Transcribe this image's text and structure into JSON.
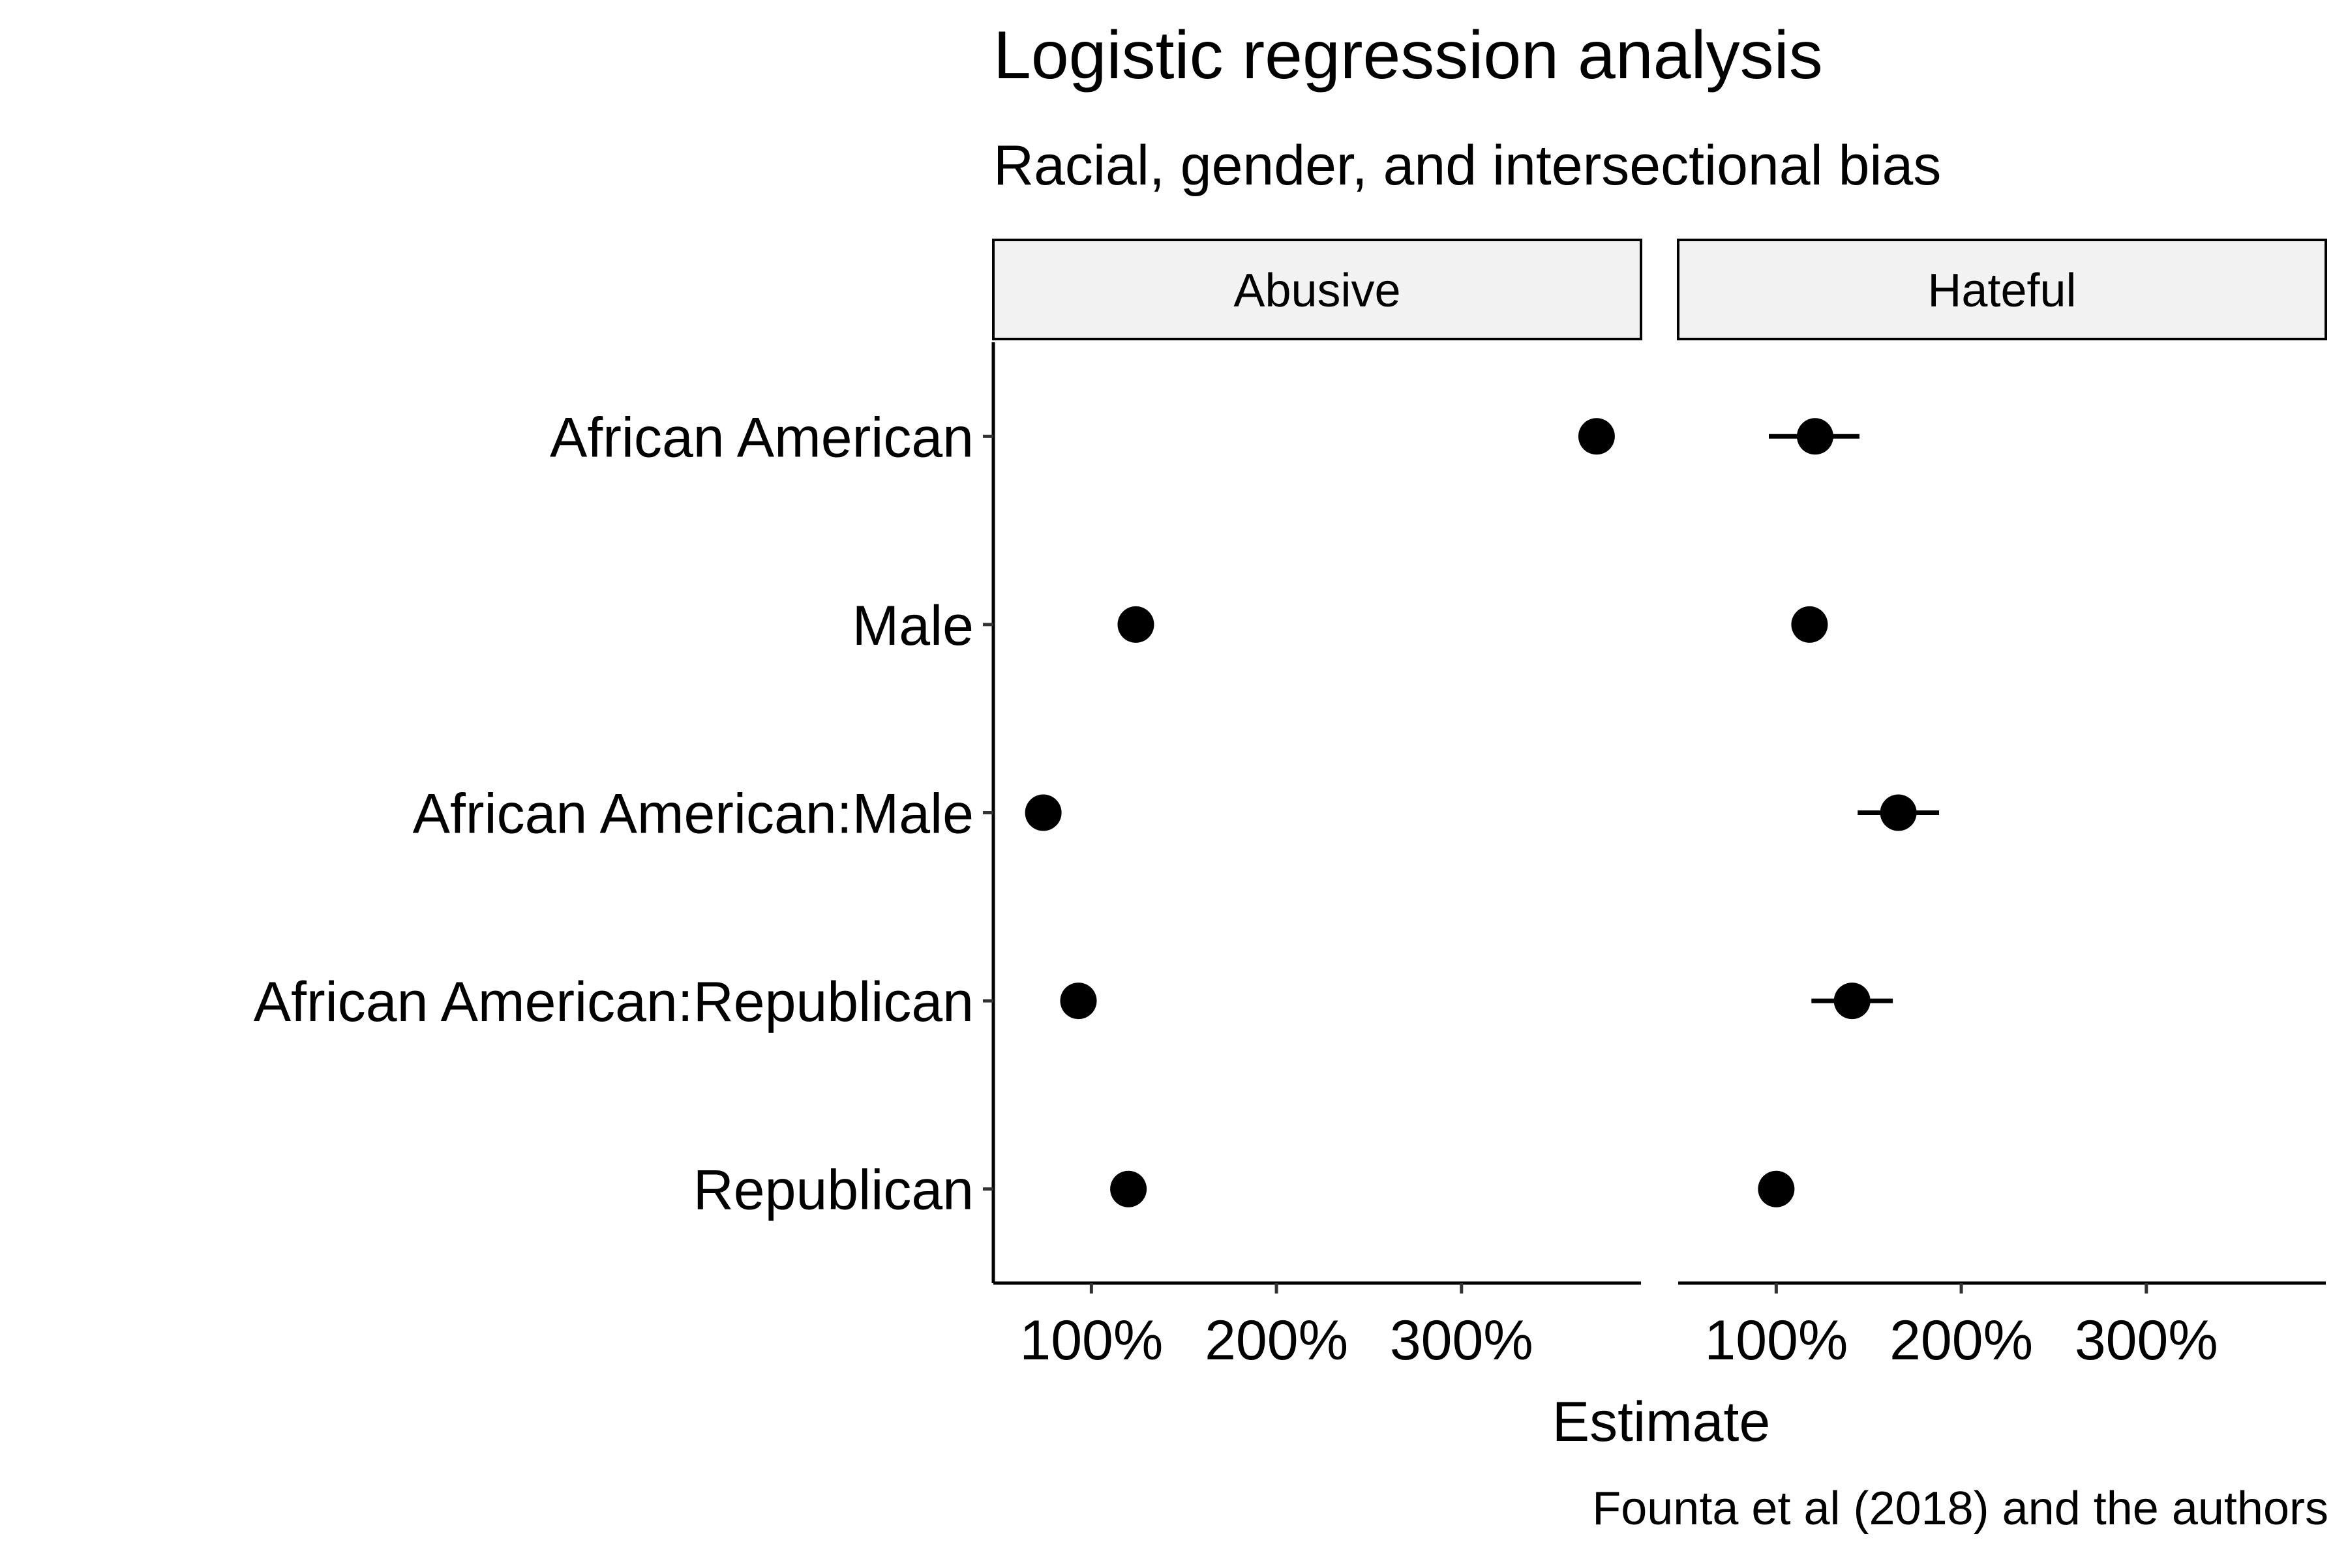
{
  "chart_data": {
    "type": "scatter",
    "subtype": "dot-and-whisker, faceted",
    "title": "Logistic regression analysis",
    "subtitle": "Racial, gender, and intersectional bias",
    "xlabel": "Estimate",
    "ylabel": "",
    "caption": "Founta et al (2018) and the authors",
    "x_unit": "%",
    "xlim": [
      47,
      397
    ],
    "x_ticks": [
      100,
      200,
      300
    ],
    "x_tick_labels": [
      "100%",
      "200%",
      "300%"
    ],
    "grid": false,
    "legend": "none",
    "categories": [
      "African American",
      "Male",
      "African American:Male",
      "African American:Republican",
      "Republican"
    ],
    "panels": [
      {
        "name": "Abusive",
        "points": [
          {
            "term": "African American",
            "estimate": 373,
            "low": 365,
            "high": 381
          },
          {
            "term": "Male",
            "estimate": 124,
            "low": 121,
            "high": 127
          },
          {
            "term": "African American:Male",
            "estimate": 74,
            "low": 66,
            "high": 82
          },
          {
            "term": "African American:Republican",
            "estimate": 93,
            "low": 84,
            "high": 102
          },
          {
            "term": "Republican",
            "estimate": 120,
            "low": 117,
            "high": 123
          }
        ]
      },
      {
        "name": "Hateful",
        "points": [
          {
            "term": "African American",
            "estimate": 121,
            "low": 96,
            "high": 145
          },
          {
            "term": "Male",
            "estimate": 118,
            "low": 113,
            "high": 123
          },
          {
            "term": "African American:Male",
            "estimate": 166,
            "low": 144,
            "high": 188
          },
          {
            "term": "African American:Republican",
            "estimate": 141,
            "low": 119,
            "high": 163
          },
          {
            "term": "Republican",
            "estimate": 100,
            "low": 96,
            "high": 104
          }
        ]
      }
    ]
  }
}
